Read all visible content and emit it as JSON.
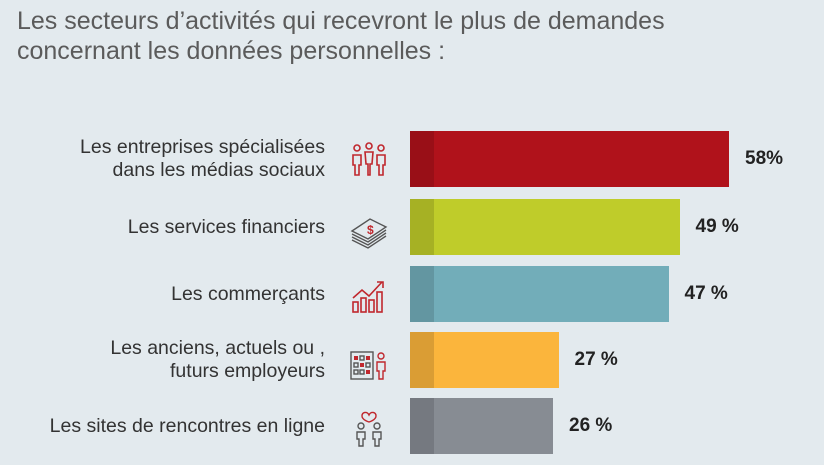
{
  "title_line1": "Les secteurs d’activités qui recevront le plus de demandes",
  "title_line2": "concernant les données personnelles :",
  "chart_data": {
    "type": "bar",
    "orientation": "horizontal",
    "categories": [
      "Les entreprises spécialisées\ndans les médias sociaux",
      "Les services financiers",
      "Les commerçants",
      "Les anciens, actuels ou ,\nfuturs employeurs",
      "Les sites de rencontres en ligne"
    ],
    "values": [
      58,
      49,
      47,
      27,
      26
    ],
    "value_labels": [
      "58%",
      "49 %",
      "47 %",
      "27 %",
      "26 %"
    ],
    "colors": [
      "#b0121b",
      "#bfcc2a",
      "#72adb9",
      "#fbb53c",
      "#878c93"
    ],
    "icons": [
      "people-icon",
      "money-stack-icon",
      "growth-chart-icon",
      "office-building-person-icon",
      "couple-heart-icon"
    ],
    "xlim": [
      0,
      100
    ]
  }
}
